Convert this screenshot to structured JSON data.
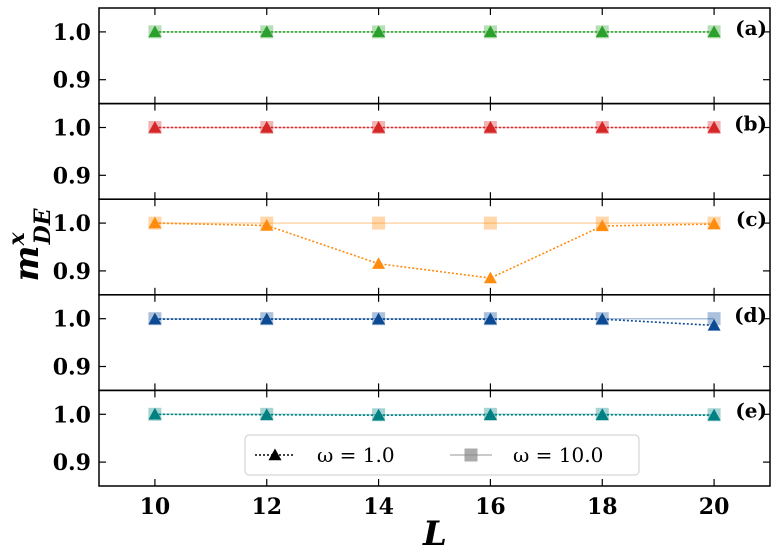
{
  "chart_data": {
    "type": "line",
    "xlabel": "L",
    "ylabel": {
      "base": "m",
      "sup": "x",
      "sub": "DE"
    },
    "x": [
      10,
      12,
      14,
      16,
      18,
      20
    ],
    "xlim": [
      9,
      21
    ],
    "ylim": [
      0.85,
      1.05
    ],
    "yticks": [
      0.9,
      1.0
    ],
    "ytick_labels": [
      "0.9",
      "1.0"
    ],
    "xtick_labels": [
      "10",
      "12",
      "14",
      "16",
      "18",
      "20"
    ],
    "legend": {
      "placement": "bottom-center of panel (e)",
      "entries": [
        {
          "label": "ω = 1.0",
          "marker": "triangle",
          "line": "dotted",
          "color": "#000000"
        },
        {
          "label": "ω = 10.0",
          "marker": "square",
          "line": "solid",
          "color": "#888888"
        }
      ]
    },
    "panels": [
      {
        "label": "(a)",
        "color": "#2ca02c",
        "series": [
          {
            "omega": "1.0",
            "values": [
              1.0,
              1.0,
              1.0,
              1.0,
              1.0,
              1.0
            ]
          },
          {
            "omega": "10.0",
            "values": [
              1.0,
              1.0,
              1.0,
              1.0,
              1.0,
              1.0
            ]
          }
        ]
      },
      {
        "label": "(b)",
        "color": "#d62728",
        "series": [
          {
            "omega": "1.0",
            "values": [
              1.0,
              1.0,
              1.0,
              1.0,
              1.0,
              1.0
            ]
          },
          {
            "omega": "10.0",
            "values": [
              1.0,
              1.0,
              1.0,
              1.0,
              1.0,
              1.0
            ]
          }
        ]
      },
      {
        "label": "(c)",
        "color": "#ff8c0f",
        "series": [
          {
            "omega": "1.0",
            "values": [
              1.0,
              0.995,
              0.915,
              0.885,
              0.994,
              0.998
            ]
          },
          {
            "omega": "10.0",
            "values": [
              1.0,
              1.0,
              1.0,
              1.0,
              1.0,
              1.0
            ]
          }
        ]
      },
      {
        "label": "(d)",
        "color": "#0d4a94",
        "series": [
          {
            "omega": "1.0",
            "values": [
              0.999,
              0.999,
              0.999,
              0.999,
              0.999,
              0.986
            ]
          },
          {
            "omega": "10.0",
            "values": [
              1.0,
              1.0,
              1.0,
              1.0,
              1.0,
              1.0
            ]
          }
        ]
      },
      {
        "label": "(e)",
        "color": "#008080",
        "series": [
          {
            "omega": "1.0",
            "values": [
              1.0,
              0.999,
              0.998,
              0.999,
              0.999,
              0.998
            ]
          },
          {
            "omega": "10.0",
            "values": [
              1.0,
              1.0,
              0.999,
              1.0,
              1.0,
              0.999
            ]
          }
        ]
      }
    ]
  }
}
